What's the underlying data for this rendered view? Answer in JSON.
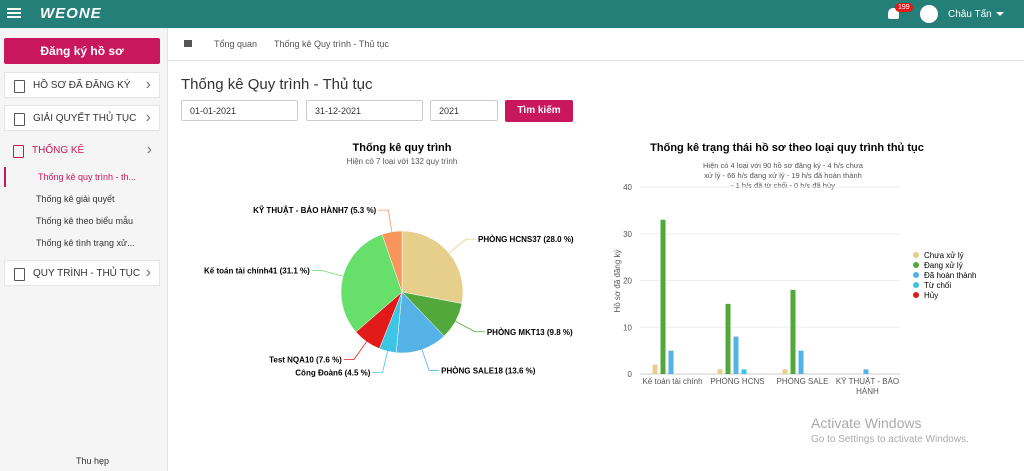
{
  "header": {
    "logo": "WEONE",
    "notifications": "199",
    "user": "Châu Tấn"
  },
  "sidebar": {
    "button": "Đăng ký hồ sơ",
    "menu": [
      {
        "label": "HỒ SƠ ĐÃ ĐĂNG KÝ"
      },
      {
        "label": "GIẢI QUYẾT THỦ TỤC"
      },
      {
        "label": "THỐNG KÊ",
        "children": [
          "Thống kê quy trình - th...",
          "Thống kê giải quyết",
          "Thống kê theo biểu mẫu",
          "Thống kê tình trạng xử..."
        ]
      },
      {
        "label": "QUY TRÌNH - THỦ TỤC"
      }
    ],
    "collapse": "Thu hẹp"
  },
  "breadcrumb": [
    "Tổng quan",
    "Thống kê Quy trình - Thủ tục"
  ],
  "page_title": "Thống kê Quy trình - Thủ tục",
  "filters": {
    "from": "01-01-2021",
    "to": "31-12-2021",
    "year": "2021",
    "button": "Tìm kiếm"
  },
  "chart_data": [
    {
      "type": "pie",
      "title": "Thống kê quy trình",
      "subtitle": "Hiện có 7 loại với 132 quy trình",
      "categories": [
        "PHÒNG HCNS",
        "PHÒNG MKT",
        "PHÒNG SALE",
        "Công Đoàn",
        "Test NQA",
        "Kế toán tài chính",
        "KỸ THUẬT - BẢO HÀNH"
      ],
      "values": [
        37,
        13,
        18,
        6,
        10,
        41,
        7
      ],
      "value_labels": [
        "37 (28.0 %)",
        "13 (9.8 %)",
        "18 (13.6 %)",
        "6 (4.5 %)",
        "10 (7.6 %)",
        "41 (31.1 %)",
        "7 (5.3 %)"
      ],
      "colors": [
        "#e6cf8b",
        "#52a83a",
        "#55b2e6",
        "#3cc6e6",
        "#e21a1a",
        "#66e06a",
        "#f7955a"
      ]
    },
    {
      "type": "bar",
      "title": "Thống kê trạng thái hồ sơ theo loại quy trình thủ tục",
      "subtitle": "Hiện có 4 loại với 90 hồ sơ đăng ký - 4 h/s chưa xử lý - 66 h/s đang xử lý - 19 h/s đã hoàn thành - 1 h/s đã từ chối - 0 h/s đã hủy",
      "y_label": "Hồ sơ đã đăng ký",
      "categories": [
        "Kế toán tài chính",
        "PHÒNG HCNS",
        "PHÒNG SALE",
        "KỸ THUẬT - BẢO HÀNH"
      ],
      "series": [
        {
          "name": "Chưa xử lý",
          "color": "#e6cf8b",
          "values": [
            2,
            1,
            1,
            0
          ]
        },
        {
          "name": "Đang xử lý",
          "color": "#52a83a",
          "values": [
            33,
            15,
            18,
            0
          ]
        },
        {
          "name": "Đã hoàn thành",
          "color": "#55b2e6",
          "values": [
            5,
            8,
            5,
            1
          ]
        },
        {
          "name": "Từ chối",
          "color": "#3cc6e6",
          "values": [
            0,
            1,
            0,
            0
          ]
        },
        {
          "name": "Hủy",
          "color": "#e21a1a",
          "values": [
            0,
            0,
            0,
            0
          ]
        }
      ],
      "ylim": [
        0,
        40
      ],
      "yticks": [
        0,
        10,
        20,
        30,
        40
      ],
      "grid": true,
      "legend": "right"
    }
  ],
  "watermark": {
    "title": "Activate Windows",
    "text": "Go to Settings to activate Windows."
  }
}
